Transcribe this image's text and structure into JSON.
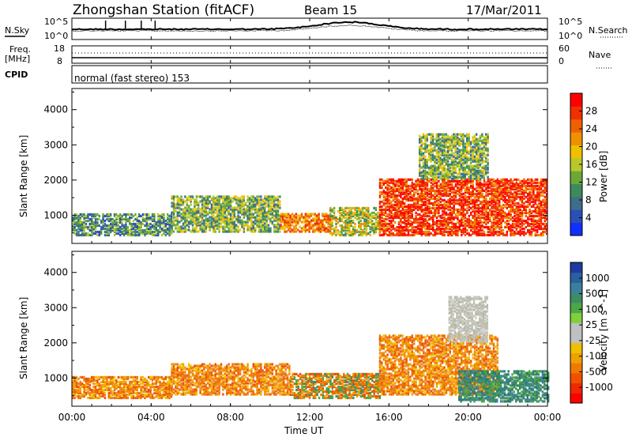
{
  "header": {
    "station": "Zhongshan Station (fitACF)",
    "beam": "Beam 15",
    "date": "17/Mar/2011"
  },
  "noise_panel": {
    "left_label": "N.Sky",
    "right_label": "N.Search",
    "left_ticks": [
      "10^5",
      "10^0"
    ],
    "right_ticks": [
      "10^5",
      "10^0"
    ]
  },
  "freq_panel": {
    "left_label_top": "Freq.",
    "left_label_bottom": "[MHz]",
    "right_label": "Nave",
    "left_ticks": [
      "18",
      "8"
    ],
    "right_ticks": [
      "60",
      "0"
    ]
  },
  "cpid_panel": {
    "label": "CPID",
    "mode_text": "normal (fast stereo) 153"
  },
  "x_axis": {
    "label": "Time UT",
    "ticks": [
      "00:00",
      "04:00",
      "08:00",
      "12:00",
      "16:00",
      "20:00",
      "00:00"
    ]
  },
  "chart_data": [
    {
      "type": "heatmap",
      "title": "",
      "xlabel": "",
      "ylabel": "Slant Range [km]",
      "xlim_hours": [
        0,
        24
      ],
      "ylim_km": [
        200,
        4600
      ],
      "y_ticks": [
        1000,
        2000,
        3000,
        4000
      ],
      "colorbar": {
        "label": "Power [dB]",
        "ticks": [
          "4",
          "8",
          "12",
          "16",
          "20",
          "24",
          "28"
        ],
        "colors": [
          "#1030ff",
          "#2a4fb8",
          "#3c6e8a",
          "#3e8a5c",
          "#6aa83a",
          "#b8c82a",
          "#f0c000",
          "#f09000",
          "#f06000",
          "#f03000",
          "#ff0000"
        ]
      },
      "regions": [
        {
          "t_start": 0.0,
          "t_end": 5.0,
          "r_min": 400,
          "r_max": 1000,
          "level": "low"
        },
        {
          "t_start": 5.0,
          "t_end": 10.5,
          "r_min": 500,
          "r_max": 1500,
          "level": "low-mid"
        },
        {
          "t_start": 10.5,
          "t_end": 13.0,
          "r_min": 500,
          "r_max": 1000,
          "level": "mid-high"
        },
        {
          "t_start": 13.0,
          "t_end": 15.5,
          "r_min": 400,
          "r_max": 1200,
          "level": "mid"
        },
        {
          "t_start": 15.5,
          "t_end": 24.0,
          "r_min": 400,
          "r_max": 2000,
          "level": "high"
        },
        {
          "t_start": 17.5,
          "t_end": 21.0,
          "r_min": 2000,
          "r_max": 3300,
          "level": "low-mid"
        }
      ]
    },
    {
      "type": "heatmap",
      "title": "",
      "xlabel": "Time UT",
      "ylabel": "Slant Range [km]",
      "xlim_hours": [
        0,
        24
      ],
      "ylim_km": [
        200,
        4600
      ],
      "y_ticks": [
        1000,
        2000,
        3000,
        4000
      ],
      "colorbar": {
        "label": "Velocity [m s^-1]",
        "ticks": [
          "1000",
          "500",
          "100",
          "25",
          "-25",
          "-100",
          "-500",
          "-1000"
        ],
        "colors": [
          "#1f3a9e",
          "#2c5fa0",
          "#3b7fa0",
          "#3e8c62",
          "#4aa846",
          "#7fd03a",
          "#c0c0c0",
          "#c0c0c0",
          "#f0c000",
          "#f0a000",
          "#f07a00",
          "#f05000",
          "#f02800",
          "#ff0000"
        ]
      },
      "regions": [
        {
          "t_start": 0.0,
          "t_end": 5.0,
          "r_min": 400,
          "r_max": 1000,
          "level": "negative"
        },
        {
          "t_start": 5.0,
          "t_end": 11.0,
          "r_min": 500,
          "r_max": 1400,
          "level": "negative"
        },
        {
          "t_start": 11.0,
          "t_end": 15.5,
          "r_min": 400,
          "r_max": 1100,
          "level": "mixed"
        },
        {
          "t_start": 15.5,
          "t_end": 21.5,
          "r_min": 500,
          "r_max": 2200,
          "level": "negative"
        },
        {
          "t_start": 19.5,
          "t_end": 24.0,
          "r_min": 300,
          "r_max": 1200,
          "level": "positive"
        },
        {
          "t_start": 19.0,
          "t_end": 21.0,
          "r_min": 2000,
          "r_max": 3300,
          "level": "near-zero"
        }
      ]
    }
  ]
}
